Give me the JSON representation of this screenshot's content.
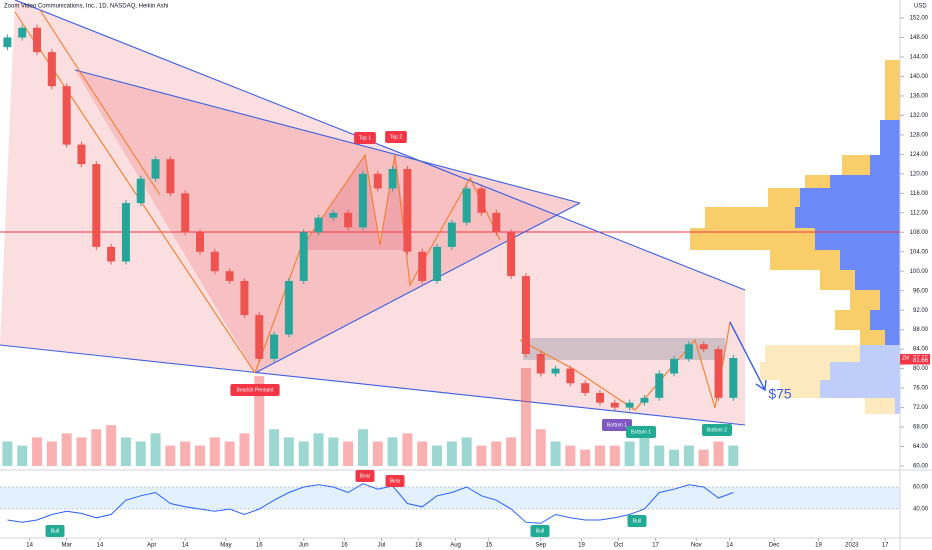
{
  "chart_data": {
    "type": "candlestick",
    "title": "Zoom Video Communications, Inc., 1D, NASDAQ, Heikin Ashi",
    "symbol": "ZM",
    "currency": "USD",
    "x": [
      2,
      6,
      10,
      14,
      18,
      22,
      26,
      30,
      34,
      38,
      42,
      46,
      50,
      54,
      58,
      62,
      66,
      70,
      74,
      78,
      82,
      86,
      90,
      94,
      98,
      102,
      106,
      110,
      114,
      118,
      122,
      126,
      130,
      134,
      138,
      142,
      146,
      150,
      154,
      158,
      162,
      166,
      170,
      174,
      178,
      182,
      186,
      190,
      194,
      198
    ],
    "open": [
      146,
      148,
      150,
      145,
      138,
      126,
      122,
      105,
      102,
      114,
      119,
      123,
      116,
      108,
      104,
      100,
      98,
      91,
      82,
      87,
      98,
      108,
      111,
      112,
      109,
      120,
      117,
      121,
      104,
      98,
      105,
      110,
      117,
      112,
      108,
      99,
      83,
      79,
      80,
      77,
      75,
      73,
      72,
      73,
      74,
      79,
      82,
      85,
      84,
      74
    ],
    "close": [
      148,
      150,
      145,
      138,
      126,
      122,
      105,
      102,
      114,
      119,
      123,
      116,
      108,
      104,
      100,
      98,
      91,
      82,
      87,
      98,
      108,
      111,
      112,
      109,
      120,
      117,
      121,
      104,
      98,
      105,
      110,
      117,
      112,
      108,
      99,
      83,
      79,
      80,
      77,
      75,
      73,
      72,
      73,
      74,
      79,
      82,
      85,
      84,
      74,
      82.18
    ],
    "volume": [
      6,
      5,
      7,
      6,
      8,
      7,
      9,
      10,
      7,
      6,
      8,
      5,
      6,
      5,
      7,
      6,
      8,
      22,
      9,
      7,
      6,
      8,
      7,
      6,
      9,
      6,
      7,
      8,
      6,
      5,
      6,
      7,
      5,
      6,
      7,
      24,
      9,
      6,
      5,
      4,
      5,
      5,
      6,
      7,
      5,
      4,
      5,
      4,
      6,
      5
    ],
    "rsi": [
      30,
      28,
      30,
      35,
      38,
      36,
      32,
      35,
      48,
      52,
      55,
      45,
      42,
      40,
      38,
      40,
      35,
      40,
      48,
      55,
      60,
      62,
      60,
      55,
      63,
      58,
      61,
      45,
      42,
      52,
      55,
      60,
      52,
      48,
      40,
      28,
      27,
      35,
      32,
      30,
      30,
      32,
      35,
      40,
      55,
      58,
      62,
      60,
      50,
      55
    ],
    "up_color": "#26a69a",
    "down_color": "#ef5350",
    "xlim": [
      0,
      243
    ],
    "xticks": [
      {
        "value": 8,
        "label": "14"
      },
      {
        "value": 18,
        "label": "Mar"
      },
      {
        "value": 27,
        "label": "14"
      },
      {
        "value": 41,
        "label": "Apr"
      },
      {
        "value": 50,
        "label": "14"
      },
      {
        "value": 61,
        "label": "May"
      },
      {
        "value": 70,
        "label": "16"
      },
      {
        "value": 82,
        "label": "Jun"
      },
      {
        "value": 93,
        "label": "16"
      },
      {
        "value": 103,
        "label": "Jul"
      },
      {
        "value": 113,
        "label": "18"
      },
      {
        "value": 123,
        "label": "Aug"
      },
      {
        "value": 132,
        "label": "15"
      },
      {
        "value": 146,
        "label": "Sep"
      },
      {
        "value": 157,
        "label": "19"
      },
      {
        "value": 167,
        "label": "Oct"
      },
      {
        "value": 177,
        "label": "17"
      },
      {
        "value": 188,
        "label": "Nov"
      },
      {
        "value": 197,
        "label": "14"
      },
      {
        "value": 209,
        "label": "Dec"
      },
      {
        "value": 221,
        "label": "19"
      },
      {
        "value": 230,
        "label": "2023"
      },
      {
        "value": 239,
        "label": "17"
      }
    ],
    "ylim": [
      60,
      152
    ],
    "yticks": [
      {
        "value": 60,
        "label": "60.00"
      },
      {
        "value": 64,
        "label": "64.00"
      },
      {
        "value": 68,
        "label": "68.00"
      },
      {
        "value": 72,
        "label": "72.00"
      },
      {
        "value": 76,
        "label": "76.00"
      },
      {
        "value": 80,
        "label": "80.00"
      },
      {
        "value": 84,
        "label": "84.00"
      },
      {
        "value": 88,
        "label": "88.00"
      },
      {
        "value": 92,
        "label": "92.00"
      },
      {
        "value": 96,
        "label": "96.00"
      },
      {
        "value": 100,
        "label": "100.00"
      },
      {
        "value": 104,
        "label": "104.00"
      },
      {
        "value": 108,
        "label": "108.00"
      },
      {
        "value": 112,
        "label": "112.00"
      },
      {
        "value": 116,
        "label": "116.00"
      },
      {
        "value": 120,
        "label": "120.00"
      },
      {
        "value": 124,
        "label": "124.00"
      },
      {
        "value": 128,
        "label": "128.00"
      },
      {
        "value": 132,
        "label": "132.00"
      },
      {
        "value": 136,
        "label": "136.00"
      },
      {
        "value": 140,
        "label": "140.00"
      },
      {
        "value": 144,
        "label": "144.00"
      },
      {
        "value": 148,
        "label": "148.00"
      },
      {
        "value": 152,
        "label": "152.00"
      }
    ],
    "rsi_ticks": [
      {
        "value": 60,
        "label": "60.00"
      },
      {
        "value": 40,
        "label": "40.00"
      }
    ],
    "last_price_labels": [
      {
        "value": 82.18,
        "label": "82.18"
      },
      {
        "value": 81.66,
        "label": "81.66"
      }
    ],
    "annotations": [
      "Top 1",
      "Top 2",
      "Bearish Pennant",
      "Bottom 1",
      "Bottom 1",
      "Bottom 2",
      "$75",
      "Bear",
      "Bear",
      "Bull",
      "Bull",
      "Bull"
    ]
  }
}
